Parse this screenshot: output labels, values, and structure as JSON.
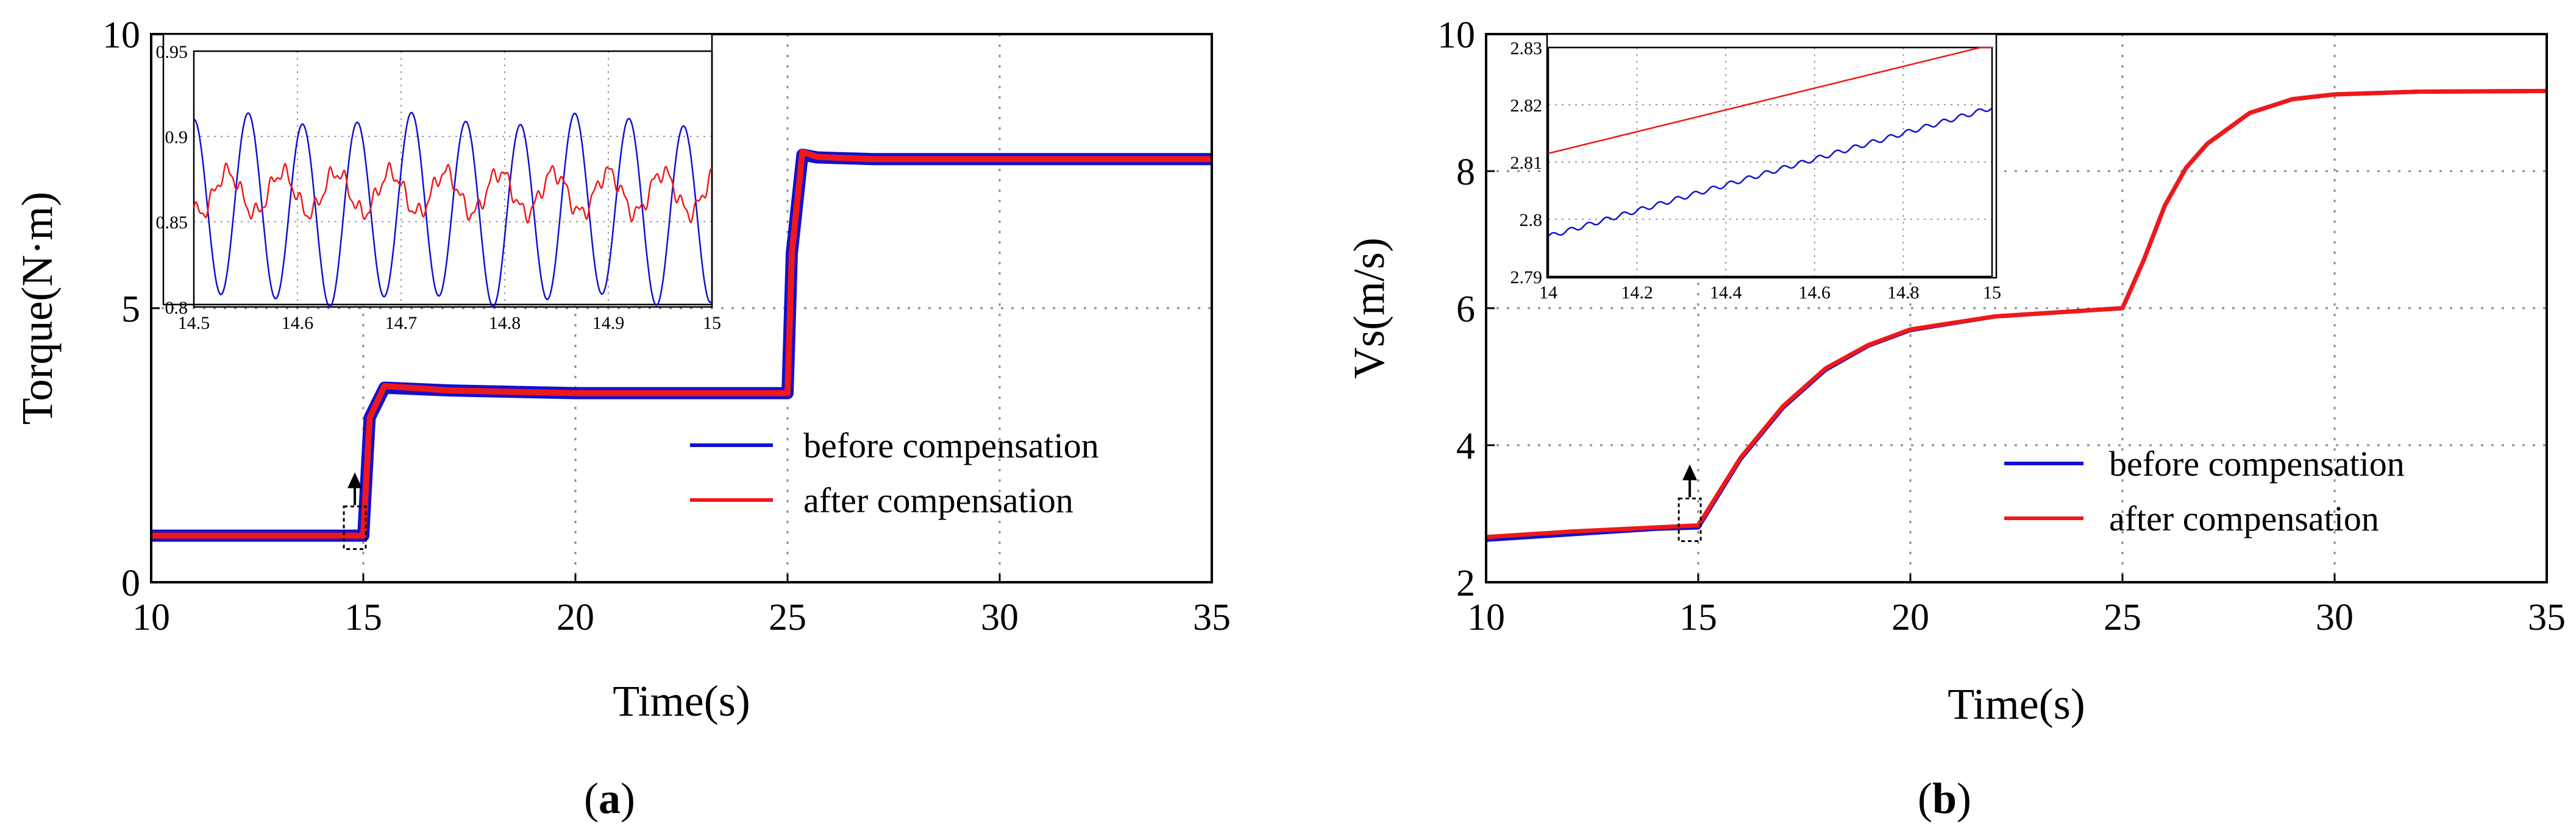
{
  "chart_data": [
    {
      "type": "line",
      "caption_open": "(",
      "caption_letter": "a",
      "caption_close": ")",
      "xlabel": "Time(s)",
      "ylabel": "Torque(N·m)",
      "xlim": [
        10,
        35
      ],
      "ylim": [
        0,
        10
      ],
      "xticks": [
        "10",
        "15",
        "20",
        "25",
        "30",
        "35"
      ],
      "yticks": [
        "0",
        "5",
        "10"
      ],
      "legend": [
        "before compensation",
        "after compensation"
      ],
      "legend_position": "center-right",
      "colors": {
        "before": "#1010d0",
        "after": "#f01818"
      },
      "series": [
        {
          "name": "before compensation",
          "x": [
            10,
            15,
            15.15,
            15.5,
            17,
            20,
            25,
            25.1,
            25.35,
            25.7,
            27,
            30,
            35
          ],
          "y": [
            0.85,
            0.85,
            3.0,
            3.55,
            3.5,
            3.45,
            3.45,
            6.0,
            7.8,
            7.75,
            7.72,
            7.72,
            7.72
          ]
        },
        {
          "name": "after compensation",
          "x": [
            10,
            15,
            15.15,
            15.5,
            17,
            20,
            25,
            25.1,
            25.35,
            25.7,
            27,
            30,
            35
          ],
          "y": [
            0.85,
            0.85,
            3.0,
            3.58,
            3.5,
            3.45,
            3.45,
            6.0,
            7.85,
            7.76,
            7.72,
            7.72,
            7.72
          ]
        }
      ],
      "inset": {
        "xlim": [
          14.5,
          15
        ],
        "ylim": [
          0.8,
          0.95
        ],
        "xticks": [
          "14.5",
          "14.6",
          "14.7",
          "14.8",
          "14.9",
          "15"
        ],
        "yticks": [
          "0.8",
          "0.85",
          "0.9",
          "0.95"
        ],
        "before": {
          "center": 0.857,
          "amplitude": 0.053,
          "period": 0.0525
        },
        "after": {
          "center": 0.867,
          "amplitude": 0.012,
          "period": 0.0525
        }
      },
      "marker_time": 14.8
    },
    {
      "type": "line",
      "caption_open": "(",
      "caption_letter": "b",
      "caption_close": ")",
      "xlabel": "Time(s)",
      "ylabel": "Vs(m/s)",
      "xlim": [
        10,
        35
      ],
      "ylim": [
        2,
        10
      ],
      "xticks": [
        "10",
        "15",
        "20",
        "25",
        "30",
        "35"
      ],
      "yticks": [
        "2",
        "4",
        "6",
        "8",
        "10"
      ],
      "legend": [
        "before compensation",
        "after compensation"
      ],
      "legend_position": "center-right",
      "colors": {
        "before": "#1010d0",
        "after": "#f01818"
      },
      "series": [
        {
          "name": "before compensation",
          "x": [
            10,
            12,
            14,
            15,
            16,
            17,
            18,
            19,
            20,
            22,
            24,
            25,
            25.5,
            26,
            26.5,
            27,
            28,
            29,
            30,
            32,
            35
          ],
          "y": [
            2.62,
            2.7,
            2.78,
            2.8,
            3.8,
            4.55,
            5.1,
            5.45,
            5.68,
            5.88,
            5.96,
            6.0,
            6.7,
            7.5,
            8.05,
            8.4,
            8.85,
            9.05,
            9.12,
            9.16,
            9.17
          ]
        },
        {
          "name": "after compensation",
          "x": [
            10,
            12,
            14,
            15,
            16,
            17,
            18,
            19,
            20,
            22,
            24,
            25,
            25.5,
            26,
            26.5,
            27,
            28,
            29,
            30,
            32,
            35
          ],
          "y": [
            2.66,
            2.74,
            2.8,
            2.83,
            3.82,
            4.57,
            5.12,
            5.46,
            5.69,
            5.88,
            5.96,
            6.0,
            6.7,
            7.5,
            8.05,
            8.4,
            8.85,
            9.05,
            9.12,
            9.16,
            9.17
          ]
        }
      ],
      "inset": {
        "xlim": [
          14,
          15
        ],
        "ylim": [
          2.79,
          2.83
        ],
        "xticks": [
          "14",
          "14.2",
          "14.4",
          "14.6",
          "14.8",
          "15"
        ],
        "yticks": [
          "2.79",
          "2.8",
          "2.81",
          "2.82",
          "2.83"
        ],
        "before": {
          "start": 2.797,
          "end": 2.8195,
          "ripple": 0.0004,
          "period": 0.04
        },
        "after": {
          "start": 2.8115,
          "end": 2.8305
        }
      },
      "marker_time": 14.8
    }
  ]
}
